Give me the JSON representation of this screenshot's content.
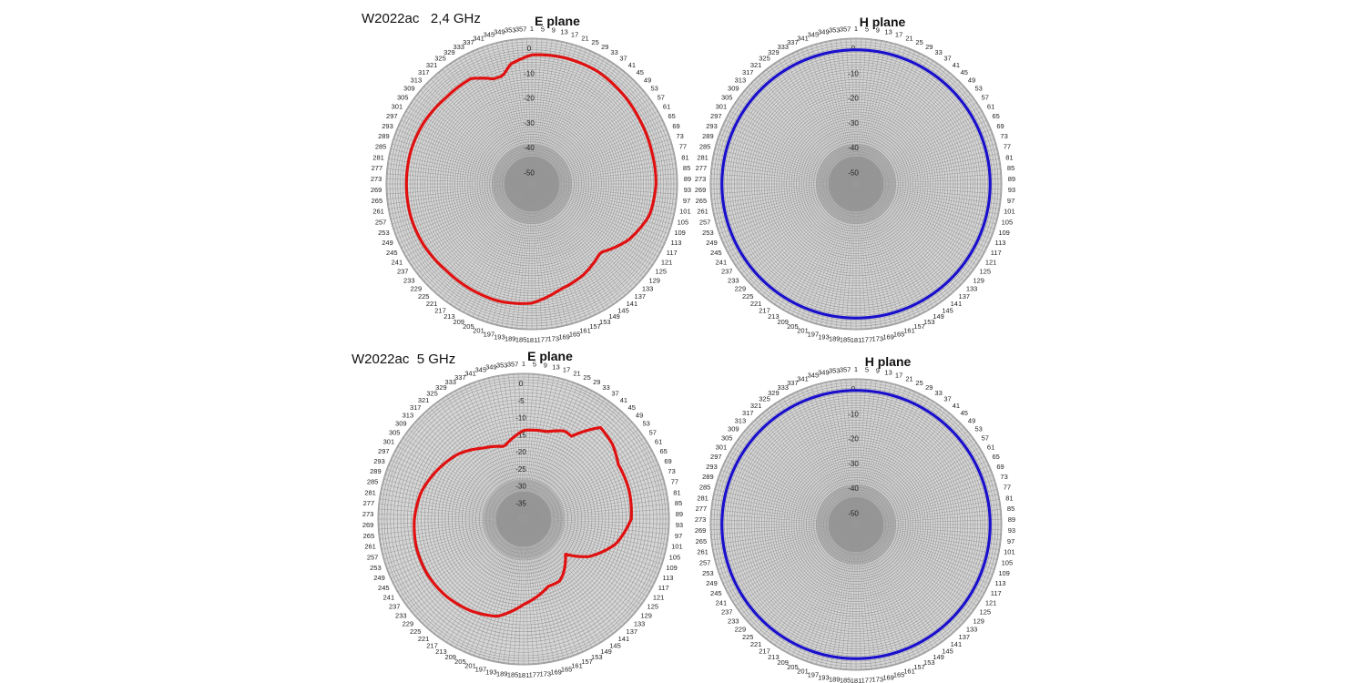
{
  "rows": [
    {
      "label": "W2022ac   2,4 GHz"
    },
    {
      "label": "W2022ac  5 GHz"
    }
  ],
  "colors": {
    "e_plane": "#e01010",
    "h_plane": "#1a10cc",
    "grid": "#8a8a8a",
    "background": "#d6d6d6"
  },
  "chart_data": [
    {
      "type": "polar-line",
      "title": "E plane",
      "angle_labels": [
        "1",
        "5",
        "9",
        "13",
        "17",
        "21",
        "25",
        "29",
        "33",
        "37",
        "41",
        "45",
        "49",
        "53",
        "57",
        "61",
        "65",
        "69",
        "73",
        "77",
        "81",
        "85",
        "89",
        "93",
        "97",
        "101",
        "105",
        "109",
        "113",
        "117",
        "121",
        "125",
        "129",
        "133",
        "137",
        "141",
        "145",
        "149",
        "153",
        "157",
        "161",
        "165",
        "169",
        "173",
        "177",
        "181",
        "185",
        "189",
        "193",
        "197",
        "201",
        "205",
        "209",
        "213",
        "217",
        "221",
        "225",
        "229",
        "233",
        "237",
        "241",
        "245",
        "249",
        "253",
        "257",
        "261",
        "265",
        "269",
        "273",
        "277",
        "281",
        "285",
        "289",
        "293",
        "297",
        "301",
        "305",
        "309",
        "313",
        "317",
        "321",
        "325",
        "329",
        "333",
        "337",
        "341",
        "345",
        "349",
        "353",
        "357"
      ],
      "r_ticks": [
        0,
        -10,
        -20,
        -30,
        -40,
        -50
      ],
      "rlim": [
        -55,
        0
      ],
      "series": [
        {
          "color": "#e01010",
          "angles": [
            0,
            15,
            30,
            45,
            60,
            75,
            90,
            105,
            120,
            135,
            150,
            165,
            180,
            195,
            210,
            225,
            240,
            255,
            270,
            285,
            300,
            315,
            330,
            340,
            345,
            350,
            360
          ],
          "values": [
            -3,
            -2.5,
            -2.5,
            -3.5,
            -4.5,
            -5,
            -5,
            -6,
            -10,
            -16,
            -13,
            -11,
            -7,
            -6,
            -6,
            -6,
            -5,
            -4.5,
            -4.5,
            -4.5,
            -5,
            -6,
            -6,
            -10,
            -10,
            -6,
            -3
          ]
        }
      ]
    },
    {
      "type": "polar-line",
      "title": "H plane",
      "angle_labels": [
        "1",
        "5",
        "9",
        "13",
        "17",
        "21",
        "25",
        "29",
        "33",
        "37",
        "41",
        "45",
        "49",
        "53",
        "57",
        "61",
        "65",
        "69",
        "73",
        "77",
        "81",
        "85",
        "89",
        "93",
        "97",
        "101",
        "105",
        "109",
        "113",
        "117",
        "121",
        "125",
        "129",
        "133",
        "137",
        "141",
        "145",
        "149",
        "153",
        "157",
        "161",
        "165",
        "169",
        "173",
        "177",
        "181",
        "185",
        "189",
        "193",
        "197",
        "201",
        "205",
        "209",
        "213",
        "217",
        "221",
        "225",
        "229",
        "233",
        "237",
        "241",
        "245",
        "249",
        "253",
        "257",
        "261",
        "265",
        "269",
        "273",
        "277",
        "281",
        "285",
        "289",
        "293",
        "297",
        "301",
        "305",
        "309",
        "313",
        "317",
        "321",
        "325",
        "329",
        "333",
        "337",
        "341",
        "345",
        "349",
        "353",
        "357"
      ],
      "r_ticks": [
        0,
        -10,
        -20,
        -30,
        -40,
        -50
      ],
      "rlim": [
        -55,
        0
      ],
      "series": [
        {
          "color": "#1a10cc",
          "angles": [
            0,
            90,
            180,
            270,
            360
          ],
          "values": [
            -1,
            -1,
            -1,
            -1,
            -1
          ]
        }
      ]
    },
    {
      "type": "polar-line",
      "title": "E plane",
      "angle_labels": [
        "1",
        "5",
        "9",
        "13",
        "17",
        "21",
        "25",
        "29",
        "33",
        "37",
        "41",
        "45",
        "49",
        "53",
        "57",
        "61",
        "65",
        "69",
        "73",
        "77",
        "81",
        "85",
        "89",
        "93",
        "97",
        "101",
        "105",
        "109",
        "113",
        "117",
        "121",
        "125",
        "129",
        "133",
        "137",
        "141",
        "145",
        "149",
        "153",
        "157",
        "161",
        "165",
        "169",
        "173",
        "177",
        "181",
        "185",
        "189",
        "193",
        "197",
        "201",
        "205",
        "209",
        "213",
        "217",
        "221",
        "225",
        "229",
        "233",
        "237",
        "241",
        "245",
        "249",
        "253",
        "257",
        "261",
        "265",
        "269",
        "273",
        "277",
        "281",
        "285",
        "289",
        "293",
        "297",
        "301",
        "305",
        "309",
        "313",
        "317",
        "321",
        "325",
        "329",
        "333",
        "337",
        "341",
        "345",
        "349",
        "353",
        "357"
      ],
      "r_ticks": [
        0,
        -5,
        -10,
        -15,
        -20,
        -25,
        -30,
        -35
      ],
      "rlim": [
        -40,
        0
      ],
      "series": [
        {
          "color": "#e01010",
          "angles": [
            0,
            15,
            25,
            30,
            40,
            50,
            60,
            75,
            90,
            105,
            120,
            130,
            145,
            150,
            160,
            170,
            180,
            195,
            210,
            225,
            240,
            255,
            270,
            285,
            300,
            315,
            330,
            345,
            360
          ],
          "values": [
            -14,
            -13.5,
            -11.5,
            -12,
            -5,
            -6,
            -8,
            -8,
            -8.5,
            -12,
            -18,
            -24,
            -20,
            -19,
            -19,
            -17,
            -15,
            -10.5,
            -9,
            -8,
            -7.5,
            -7.5,
            -8,
            -9,
            -11,
            -13,
            -16,
            -18,
            -14
          ]
        }
      ]
    },
    {
      "type": "polar-line",
      "title": "H plane",
      "angle_labels": [
        "1",
        "5",
        "9",
        "13",
        "17",
        "21",
        "25",
        "29",
        "33",
        "37",
        "41",
        "45",
        "49",
        "53",
        "57",
        "61",
        "65",
        "69",
        "73",
        "77",
        "81",
        "85",
        "89",
        "93",
        "97",
        "101",
        "105",
        "109",
        "113",
        "117",
        "121",
        "125",
        "129",
        "133",
        "137",
        "141",
        "145",
        "149",
        "153",
        "157",
        "161",
        "165",
        "169",
        "173",
        "177",
        "181",
        "185",
        "189",
        "193",
        "197",
        "201",
        "205",
        "209",
        "213",
        "217",
        "221",
        "225",
        "229",
        "233",
        "237",
        "241",
        "245",
        "249",
        "253",
        "257",
        "261",
        "265",
        "269",
        "273",
        "277",
        "281",
        "285",
        "289",
        "293",
        "297",
        "301",
        "305",
        "309",
        "313",
        "317",
        "321",
        "325",
        "329",
        "333",
        "337",
        "341",
        "345",
        "349",
        "353",
        "357"
      ],
      "r_ticks": [
        0,
        -10,
        -20,
        -30,
        -40,
        -50
      ],
      "rlim": [
        -55,
        0
      ],
      "series": [
        {
          "color": "#1a10cc",
          "angles": [
            0,
            90,
            180,
            270,
            360
          ],
          "values": [
            -1,
            -1,
            -1,
            -1,
            -1
          ]
        }
      ]
    }
  ]
}
